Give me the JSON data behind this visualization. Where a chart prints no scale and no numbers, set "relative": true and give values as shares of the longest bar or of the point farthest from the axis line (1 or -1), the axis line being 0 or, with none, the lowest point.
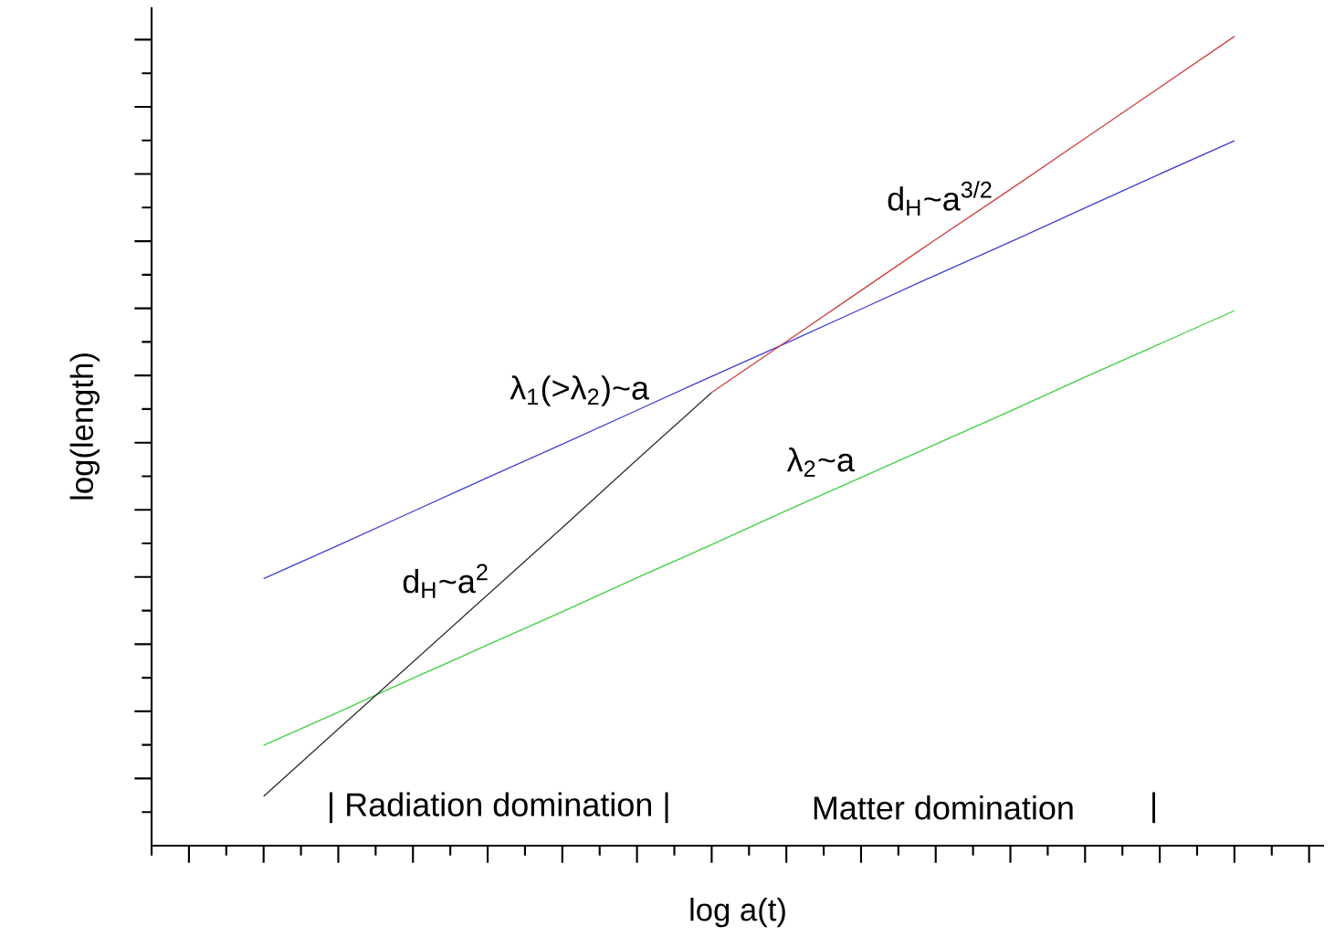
{
  "chart_data": {
    "type": "line",
    "relative": true,
    "xlabel": "log a(t)",
    "ylabel": "log(length)",
    "categories": [
      null,
      null,
      null,
      null,
      null,
      null,
      null,
      null,
      null,
      null,
      null,
      null,
      null,
      null
    ],
    "marker": "none",
    "line_style": "solid",
    "series": [
      {
        "color": "#4040d0",
        "values": [
          0.33,
          0.371,
          0.413,
          0.455,
          0.496,
          0.538,
          0.58,
          0.621,
          0.663,
          0.705,
          0.746,
          0.788,
          0.83,
          0.871
        ]
      },
      {
        "color": "#40d040",
        "values": [
          0.124,
          0.165,
          0.207,
          0.248,
          0.289,
          0.331,
          0.372,
          0.414,
          0.455,
          0.496,
          0.537,
          0.579,
          0.62,
          0.661
        ]
      },
      {
        "color": "#303030",
        "values": [
          0.061,
          0.144,
          0.227,
          0.31,
          0.393,
          0.477,
          0.56,
          null,
          null,
          null,
          null,
          null,
          null,
          null
        ]
      },
      {
        "color": "#d04040",
        "values": [
          null,
          null,
          null,
          null,
          null,
          null,
          0.56,
          0.623,
          0.686,
          0.749,
          0.811,
          0.874,
          0.937,
          1.0
        ]
      }
    ],
    "annotations": [
      "d$_{H}$~a$^{3/2}$",
      "λ$_{1}$(>λ$_{2}$)~a",
      "λ$_{2}$~a",
      "d$_{H}$~a$^{2}$",
      "| Radiation domination |",
      "Matter domination",
      "|"
    ]
  }
}
